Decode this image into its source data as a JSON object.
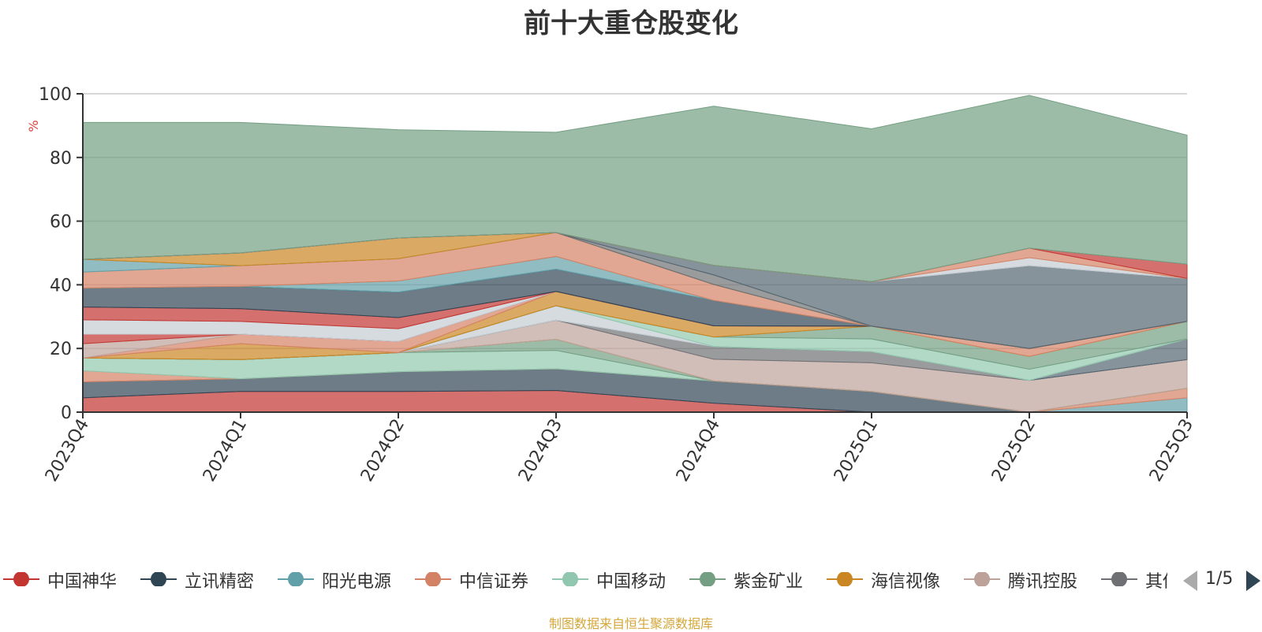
{
  "title": "前十大重仓股变化",
  "source_note": "制图数据来自恒生聚源数据库",
  "legend_page": "1/5",
  "chart_data": {
    "type": "area",
    "stacked": true,
    "ylabel": "%",
    "ylim": [
      0,
      100
    ],
    "yticks": [
      "0",
      "20",
      "40",
      "60",
      "80",
      "100"
    ],
    "categories": [
      "2023Q4",
      "2024Q1",
      "2024Q2",
      "2024Q3",
      "2024Q4",
      "2025Q1",
      "2025Q2",
      "2025Q3"
    ],
    "grid": true,
    "legend_position": "bottom",
    "series": [
      {
        "name": "中国神华",
        "color": "#c23531",
        "values": [
          4.5,
          6.5,
          6.5,
          6.8,
          2.8,
          0,
          0,
          0
        ]
      },
      {
        "name": "立讯精密",
        "color": "#2f4554",
        "values": [
          5.0,
          4.0,
          6.2,
          6.8,
          7.0,
          6.5,
          0,
          0
        ]
      },
      {
        "name": "阳光电源",
        "color": "#61a0a8",
        "values": [
          0,
          0,
          0,
          0,
          0,
          0,
          0,
          4.5
        ]
      },
      {
        "name": "中信证券",
        "color": "#d48265",
        "values": [
          3.5,
          0,
          0,
          0,
          0,
          0,
          0,
          3.0
        ]
      },
      {
        "name": "中国移动",
        "color": "#91c7ae",
        "values": [
          4.0,
          6.0,
          6.0,
          5.8,
          0,
          0,
          0,
          0
        ]
      },
      {
        "name": "紫金矿业",
        "color": "#749f83",
        "values": [
          0,
          0,
          0,
          3.5,
          0,
          0,
          0,
          0
        ]
      },
      {
        "name": "海信视像",
        "color": "#ca8622",
        "values": [
          0,
          0,
          0,
          0,
          0,
          0,
          0,
          0
        ]
      },
      {
        "name": "腾讯控股",
        "color": "#bda29a",
        "values": [
          0,
          0,
          0,
          6.0,
          6.8,
          9.0,
          10.0,
          9.0
        ]
      },
      {
        "name": "其他",
        "color": "#6e7074",
        "values": [
          0,
          0,
          0,
          0,
          4.0,
          3.5,
          0,
          0
        ]
      }
    ],
    "extra_layers": [
      {
        "color": "#546570",
        "values": [
          0,
          0,
          0,
          0,
          0,
          0,
          0,
          6.5
        ]
      },
      {
        "color": "#c4ccd3",
        "values": [
          0,
          0,
          0,
          4.5,
          0,
          0,
          0,
          0
        ]
      },
      {
        "color": "#91c7ae",
        "values": [
          0,
          0,
          0,
          0,
          3.0,
          4.0,
          3.5,
          0
        ]
      },
      {
        "color": "#749f83",
        "values": [
          0,
          0,
          0,
          0,
          0,
          4.0,
          4.0,
          5.5
        ]
      },
      {
        "color": "#ca8622",
        "values": [
          0,
          5.0,
          0,
          4.5,
          3.5,
          0,
          0,
          0
        ]
      },
      {
        "color": "#d48265",
        "values": [
          0,
          3.0,
          3.5,
          0,
          0,
          0,
          2.5,
          0
        ]
      },
      {
        "color": "#bda29a",
        "values": [
          4.5,
          0,
          0,
          0,
          0,
          0,
          0,
          0
        ]
      },
      {
        "color": "#c23531",
        "values": [
          3.0,
          0,
          0,
          0,
          0,
          0,
          0,
          0
        ]
      },
      {
        "color": "#c4ccd3",
        "values": [
          4.5,
          4.0,
          4.0,
          0,
          0,
          0,
          0,
          0
        ]
      },
      {
        "color": "#c23531",
        "values": [
          4.0,
          4.0,
          3.5,
          0,
          0,
          0,
          0,
          0
        ]
      },
      {
        "color": "#2f4554",
        "values": [
          6.0,
          7.0,
          8.0,
          7.0,
          8.0,
          0,
          0,
          0
        ]
      },
      {
        "color": "#61a0a8",
        "values": [
          0,
          0,
          3.5,
          4.0,
          0,
          0,
          0,
          0
        ]
      },
      {
        "color": "#d48265",
        "values": [
          5.0,
          6.5,
          7.0,
          7.5,
          5.0,
          0,
          0,
          0
        ]
      },
      {
        "color": "#61a0a8",
        "values": [
          4.0,
          0,
          0,
          0,
          0,
          0,
          0,
          0
        ]
      },
      {
        "color": "#ca8622",
        "values": [
          0,
          4.0,
          6.5,
          0,
          0,
          0,
          0,
          0
        ]
      },
      {
        "color": "#6e7074",
        "values": [
          0,
          0,
          0,
          0,
          3.0,
          0,
          0,
          0
        ]
      },
      {
        "color": "#546570",
        "values": [
          0,
          0,
          0,
          0,
          3.0,
          14.0,
          26.0,
          13.5
        ]
      },
      {
        "color": "#c4ccd3",
        "values": [
          0,
          0,
          0,
          0,
          0,
          0,
          2.5,
          0
        ]
      },
      {
        "color": "#d48265",
        "values": [
          0,
          0,
          0,
          0,
          0,
          0,
          3.0,
          0
        ]
      },
      {
        "color": "#c23531",
        "values": [
          0,
          0,
          0,
          0,
          0,
          0,
          0,
          4.5
        ]
      },
      {
        "color": "#749f83",
        "values": [
          43.0,
          41.0,
          34.0,
          31.5,
          50.0,
          48.0,
          48.0,
          40.5
        ]
      }
    ]
  }
}
